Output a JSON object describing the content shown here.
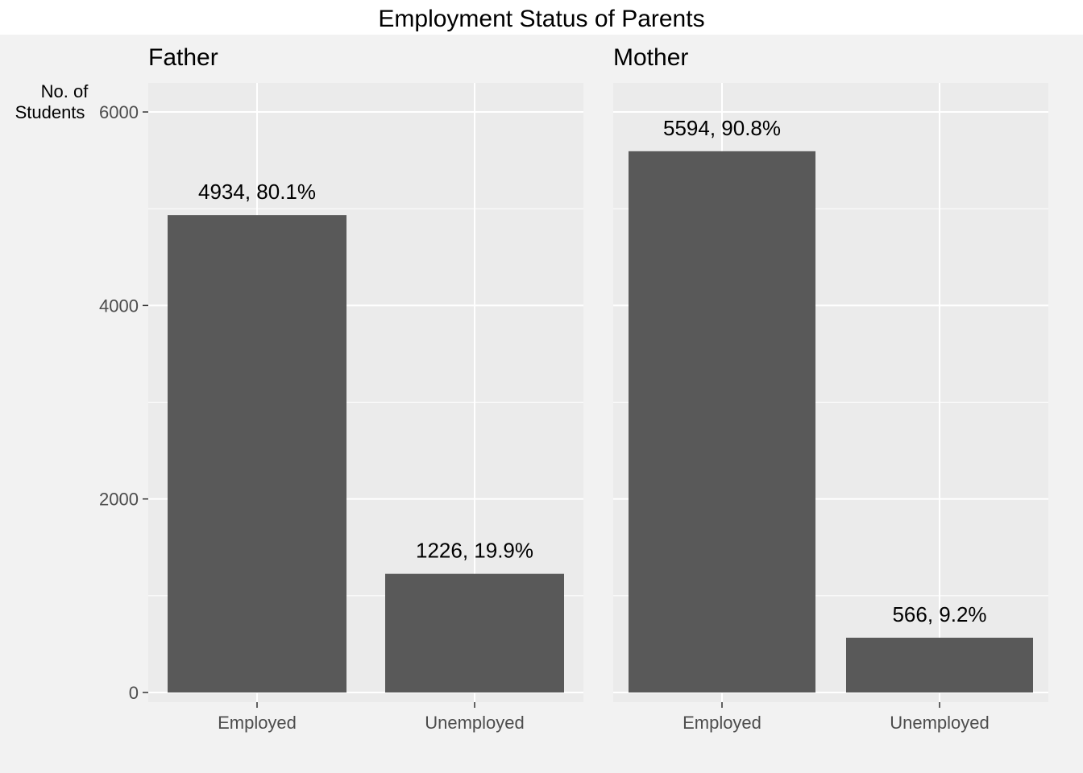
{
  "colors": {
    "page_background": "#f2f2f2",
    "title_band": "#ffffff",
    "panel_background": "#ebebeb",
    "grid_line": "#ffffff",
    "bar_fill": "#595959",
    "tick_mark": "#333333",
    "tick_text": "#4d4d4d",
    "text": "#000000"
  },
  "chart_data": {
    "type": "bar",
    "title": "Employment Status of Parents",
    "ylabel_lines": [
      "No. of",
      "Students"
    ],
    "ylim": [
      -100,
      6300
    ],
    "yticks": [
      0,
      2000,
      4000,
      6000
    ],
    "grid": true,
    "categories": [
      "Employed",
      "Unemployed"
    ],
    "facets": [
      {
        "name": "Father",
        "values": [
          4934,
          1226
        ],
        "labels": [
          "4934, 80.1%",
          "1226, 19.9%"
        ]
      },
      {
        "name": "Mother",
        "values": [
          5594,
          566
        ],
        "labels": [
          "5594, 90.8%",
          "566, 9.2%"
        ]
      }
    ]
  }
}
